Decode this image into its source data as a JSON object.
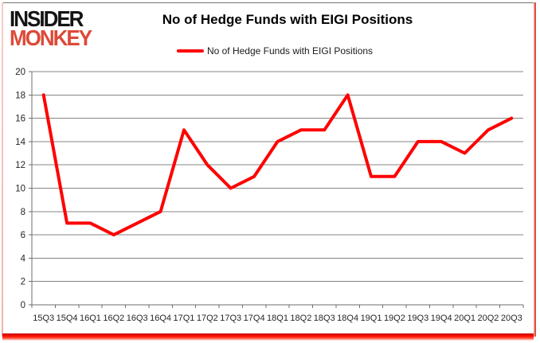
{
  "header": {
    "logo_line1": "INSIDER",
    "logo_line2": "MONKEY",
    "title": "No of Hedge Funds with EIGI Positions"
  },
  "legend": {
    "label": "No of Hedge Funds with EIGI Positions"
  },
  "chart_data": {
    "type": "line",
    "title": "No of Hedge Funds with EIGI Positions",
    "series": [
      {
        "name": "No of Hedge Funds with EIGI Positions",
        "values": [
          18,
          7,
          7,
          6,
          7,
          8,
          15,
          12,
          10,
          11,
          14,
          15,
          15,
          18,
          11,
          11,
          14,
          14,
          13,
          15,
          16
        ],
        "color": "#ff0000"
      }
    ],
    "categories": [
      "15Q3",
      "15Q4",
      "16Q1",
      "16Q2",
      "16Q3",
      "16Q4",
      "17Q1",
      "17Q2",
      "17Q3",
      "17Q4",
      "18Q1",
      "18Q2",
      "18Q3",
      "18Q4",
      "19Q1",
      "19Q2",
      "19Q3",
      "19Q4",
      "20Q1",
      "20Q2",
      "20Q3"
    ],
    "xlabel": "",
    "ylabel": "",
    "ylim": [
      0,
      20
    ],
    "ytick_step": 2,
    "grid": true,
    "legend_position": "top"
  },
  "colors": {
    "line": "#ff0000",
    "grid": "#848484",
    "axis": "#6e6e6e",
    "logo_accent": "#dd4a39",
    "frame_bottom": "#ff1400"
  }
}
